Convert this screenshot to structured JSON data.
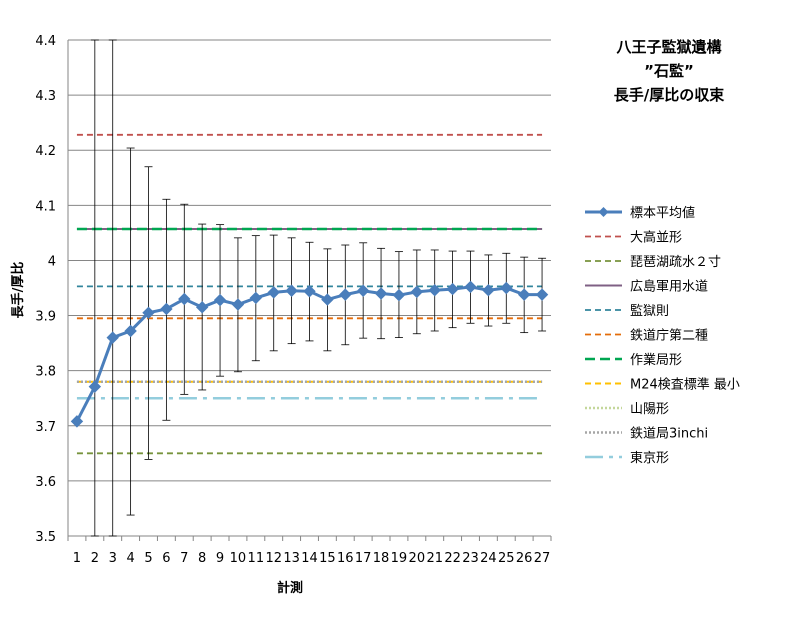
{
  "chart_data": {
    "type": "line",
    "title_lines": [
      "八王子監獄遺構",
      "”石監”",
      "長手/厚比の収束"
    ],
    "xlabel": "計測",
    "ylabel": "長手/厚比",
    "categories": [
      "1",
      "2",
      "3",
      "4",
      "5",
      "6",
      "7",
      "8",
      "9",
      "10",
      "11",
      "12",
      "13",
      "14",
      "15",
      "16",
      "17",
      "18",
      "19",
      "20",
      "21",
      "22",
      "23",
      "24",
      "25",
      "26",
      "27"
    ],
    "ylim": [
      3.5,
      4.4
    ],
    "yticks": [
      3.5,
      3.6,
      3.7,
      3.8,
      3.9,
      4,
      4.1,
      4.2,
      4.3,
      4.4
    ],
    "grid": true,
    "legend_position": "right",
    "series": [
      {
        "name": "標本平均値",
        "kind": "line-markers",
        "color": "#4a7ebb",
        "values": [
          3.708,
          3.771,
          3.86,
          3.872,
          3.905,
          3.912,
          3.93,
          3.915,
          3.928,
          3.92,
          3.932,
          3.942,
          3.945,
          3.944,
          3.929,
          3.938,
          3.945,
          3.94,
          3.937,
          3.943,
          3.946,
          3.948,
          3.952,
          3.946,
          3.95,
          3.938,
          3.938
        ],
        "error_upper": [
          null,
          4.4,
          4.4,
          4.204,
          4.17,
          4.111,
          4.102,
          4.066,
          4.065,
          4.041,
          4.045,
          4.046,
          4.041,
          4.033,
          4.021,
          4.028,
          4.032,
          4.022,
          4.016,
          4.019,
          4.019,
          4.017,
          4.017,
          4.01,
          4.013,
          4.006,
          4.004
        ],
        "error_lower": [
          null,
          3.5,
          3.5,
          3.538,
          3.639,
          3.71,
          3.757,
          3.765,
          3.79,
          3.798,
          3.818,
          3.836,
          3.849,
          3.854,
          3.836,
          3.847,
          3.859,
          3.858,
          3.86,
          3.867,
          3.872,
          3.878,
          3.886,
          3.881,
          3.886,
          3.869,
          3.872
        ]
      },
      {
        "name": "大高並形",
        "kind": "hline",
        "value": 4.228,
        "color": "#c0504d",
        "dash": "6,4",
        "width": 1.8
      },
      {
        "name": "琵琶湖疏水２寸",
        "kind": "hline",
        "value": 3.65,
        "color": "#77933c",
        "dash": "6,4",
        "width": 1.8
      },
      {
        "name": "広島軍用水道",
        "kind": "hline",
        "value": 4.057,
        "color": "#7f6084",
        "dash": "",
        "width": 2
      },
      {
        "name": "監獄則",
        "kind": "hline",
        "value": 3.953,
        "color": "#31859c",
        "dash": "6,4",
        "width": 1.8
      },
      {
        "name": "鉄道庁第二種",
        "kind": "hline",
        "value": 3.895,
        "color": "#e46c0a",
        "dash": "6,4",
        "width": 1.8
      },
      {
        "name": "作業局形",
        "kind": "hline",
        "value": 4.057,
        "color": "#00a651",
        "dash": "10,5",
        "width": 2.5
      },
      {
        "name": "M24検査標準 最小",
        "kind": "hline",
        "value": 3.78,
        "color": "#ffc000",
        "dash": "6,4",
        "width": 2
      },
      {
        "name": "山陽形",
        "kind": "hline",
        "value": 3.78,
        "color": "#c4d79b",
        "dash": "2,2",
        "width": 2.5
      },
      {
        "name": "鉄道局3inchi",
        "kind": "hline",
        "value": 3.78,
        "color": "#a6a6a6",
        "dash": "2,2",
        "width": 2.5
      },
      {
        "name": "東京形",
        "kind": "hline",
        "value": 3.75,
        "color": "#93cddd",
        "dash": "18,6,4,6",
        "width": 2.5
      }
    ]
  }
}
